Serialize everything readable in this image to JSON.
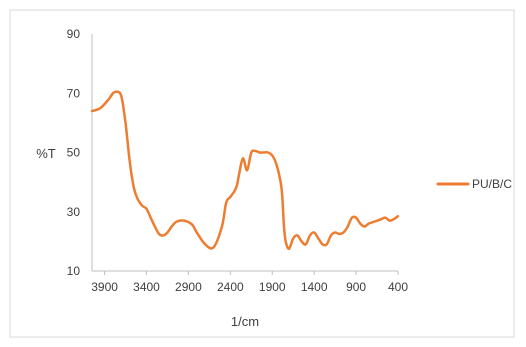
{
  "chart_data": {
    "type": "line",
    "title": "",
    "xlabel": "1/cm",
    "ylabel": "%T",
    "xlim": [
      4050,
      400
    ],
    "ylim": [
      10,
      90
    ],
    "x_reversed": true,
    "xticks": [
      3900,
      3400,
      2900,
      2400,
      1900,
      1400,
      900,
      400
    ],
    "yticks": [
      10,
      30,
      50,
      70,
      90
    ],
    "grid": false,
    "legend_position": "right",
    "series": [
      {
        "name": "PU/B/C",
        "color": "#ed7d31",
        "x": [
          4050,
          3950,
          3850,
          3800,
          3750,
          3700,
          3650,
          3600,
          3550,
          3500,
          3450,
          3400,
          3350,
          3300,
          3250,
          3200,
          3150,
          3100,
          3050,
          3000,
          2950,
          2900,
          2850,
          2800,
          2700,
          2600,
          2500,
          2450,
          2400,
          2350,
          2320,
          2300,
          2250,
          2200,
          2150,
          2100,
          2050,
          2000,
          1950,
          1900,
          1850,
          1800,
          1780,
          1760,
          1740,
          1700,
          1650,
          1600,
          1550,
          1500,
          1450,
          1400,
          1350,
          1300,
          1250,
          1200,
          1150,
          1100,
          1050,
          1000,
          950,
          900,
          850,
          800,
          750,
          700,
          650,
          600,
          550,
          500,
          450,
          400
        ],
        "y": [
          64,
          65,
          68,
          70,
          70.5,
          69,
          60,
          47,
          38,
          34,
          32,
          31,
          28,
          25,
          22.5,
          22,
          23,
          25,
          26.5,
          27,
          27,
          26.5,
          25.5,
          23,
          19,
          18,
          25,
          33,
          35,
          37,
          39,
          42,
          48,
          44,
          50,
          50.5,
          50,
          50,
          50,
          49,
          46,
          40,
          35,
          25,
          20,
          17.5,
          21,
          22,
          20,
          19,
          22,
          23,
          21,
          19,
          19,
          22,
          23,
          22.5,
          23,
          25,
          28,
          28,
          26,
          25,
          26,
          26.5,
          27,
          27.5,
          28,
          27,
          27.5,
          28.5
        ]
      }
    ]
  }
}
